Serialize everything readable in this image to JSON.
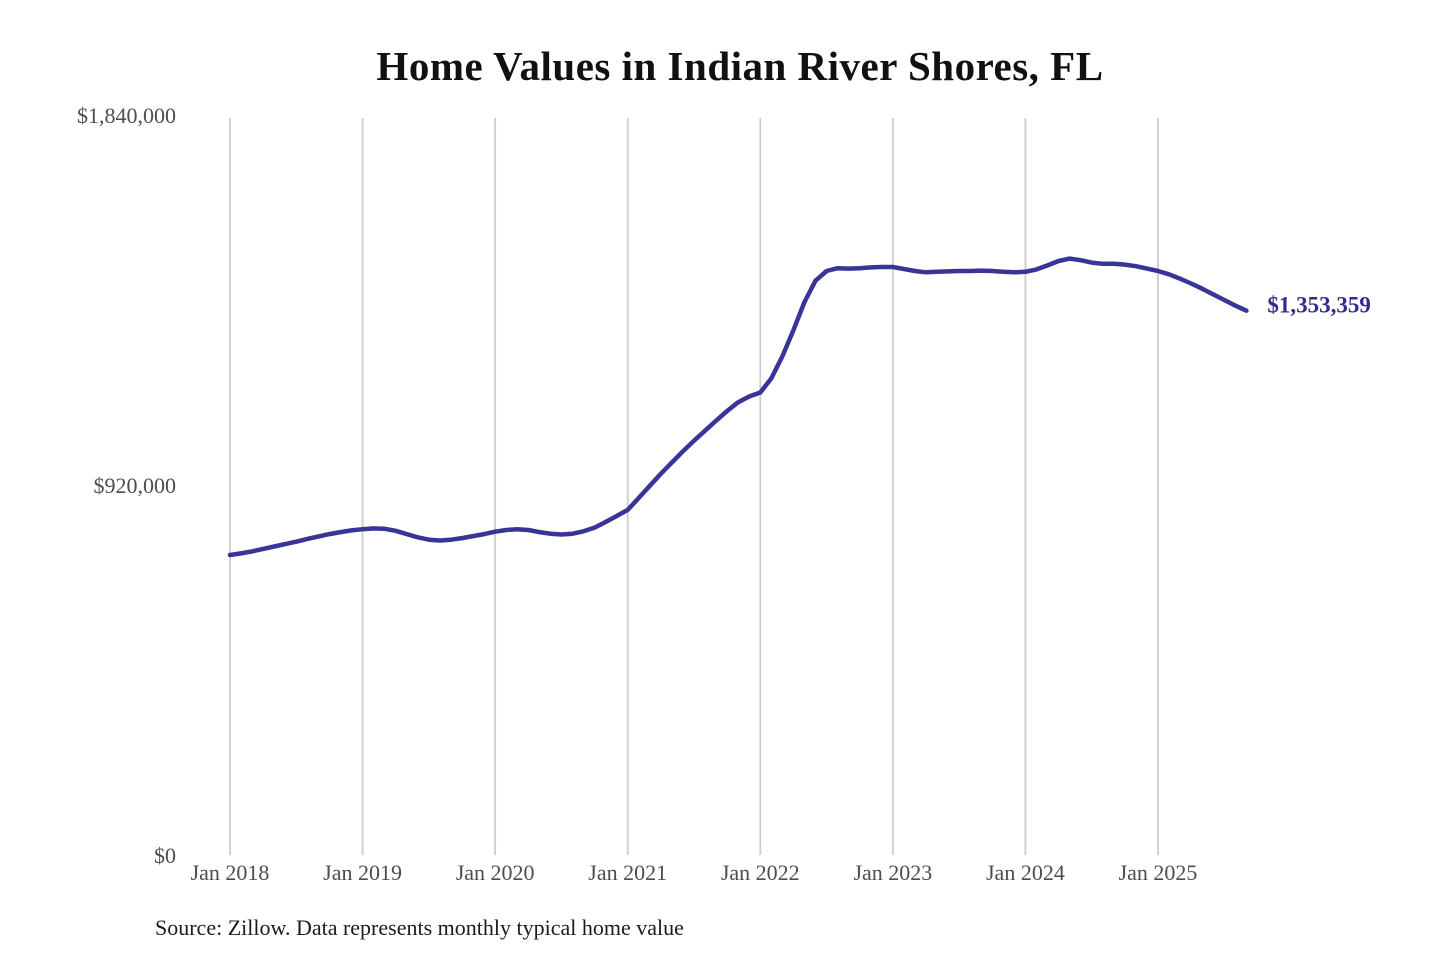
{
  "chart_data": {
    "type": "line",
    "title": "Home Values in Indian River Shores, FL",
    "source_note": "Source: Zillow. Data represents monthly typical home value",
    "legend": "none",
    "grid": "vertical-only",
    "x_unit": "month",
    "y_axis_range": [
      0,
      1840000
    ],
    "y_ticks": [
      {
        "value": 0,
        "label": "$0"
      },
      {
        "value": 920000,
        "label": "$920,000"
      },
      {
        "value": 1840000,
        "label": "$1,840,000"
      }
    ],
    "x_ticks": [
      {
        "label": "Jan 2018",
        "month_index": 0
      },
      {
        "label": "Jan 2019",
        "month_index": 12
      },
      {
        "label": "Jan 2020",
        "month_index": 24
      },
      {
        "label": "Jan 2021",
        "month_index": 36
      },
      {
        "label": "Jan 2022",
        "month_index": 48
      },
      {
        "label": "Jan 2023",
        "month_index": 60
      },
      {
        "label": "Jan 2024",
        "month_index": 72
      },
      {
        "label": "Jan 2025",
        "month_index": 84
      }
    ],
    "latest_value": 1353359,
    "latest_value_label": "$1,353,359",
    "colors": {
      "line": "#3a3497",
      "latest_label": "#2f2d8e",
      "gridline": "#cccccc",
      "tick_text": "#4d4d4d"
    },
    "series": [
      {
        "name": "Monthly typical home value",
        "x_start_label": "Jan 2018",
        "values": [
          746000,
          750000,
          755000,
          761000,
          767000,
          773000,
          779000,
          786000,
          792000,
          798000,
          803000,
          807000,
          810000,
          812000,
          811000,
          806000,
          798000,
          790000,
          784000,
          782000,
          784000,
          788000,
          793000,
          798000,
          804000,
          808000,
          810000,
          808000,
          803000,
          799000,
          797000,
          799000,
          805000,
          814000,
          828000,
          843000,
          858000,
          888000,
          918000,
          948000,
          976000,
          1004000,
          1030000,
          1055000,
          1080000,
          1104000,
          1126000,
          1140000,
          1150000,
          1185000,
          1240000,
          1305000,
          1375000,
          1428000,
          1452000,
          1459000,
          1458000,
          1459000,
          1461000,
          1462000,
          1462000,
          1457000,
          1452000,
          1449000,
          1450000,
          1451000,
          1452000,
          1452000,
          1453000,
          1452000,
          1450000,
          1449000,
          1450000,
          1456000,
          1466000,
          1477000,
          1483000,
          1479000,
          1473000,
          1470000,
          1470000,
          1468000,
          1464000,
          1458000,
          1452000,
          1444000,
          1433000,
          1421000,
          1408000,
          1394000,
          1380000,
          1366000,
          1353359
        ]
      }
    ]
  }
}
